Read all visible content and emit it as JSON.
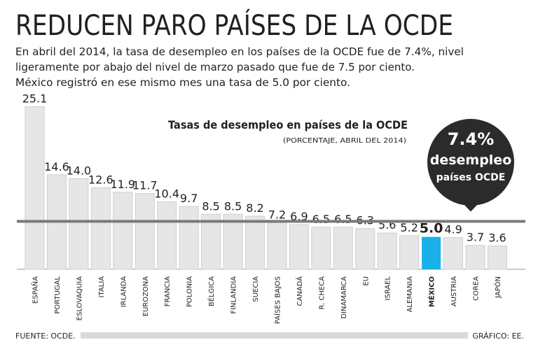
{
  "chart_data": {
    "type": "bar",
    "title": "REDUCEN PARO PAÍSES DE LA OCDE",
    "description": [
      "En abril del 2014, la tasa de desempleo en los países de la OCDE fue de 7.4%, nivel",
      "ligeramente por abajo del nivel de marzo pasado que fue de 7.5 por ciento.",
      "México registró en ese mismo mes una tasa de 5.0 por ciento."
    ],
    "subtitle": "Tasas de desempleo en países de la OCDE",
    "note": "(PORCENTAJE, ABRIL DEL 2014)",
    "categories": [
      "ESPAÑA",
      "PORTUGAL",
      "ESLOVAQUIA",
      "ITALIA",
      "IRLANDA",
      "EUROZONA",
      "FRANCIA",
      "POLONIA",
      "BÉLGICA",
      "FINLANDIA",
      "SUECIA",
      "PAÍSES BAJOS",
      "CANADÁ",
      "R. CHECA",
      "DINAMARCA",
      "EU",
      "ISRAEL",
      "ALEMANIA",
      "MÉXICO",
      "AUSTRIA",
      "COREA",
      "JAPÓN"
    ],
    "values": [
      25.1,
      14.6,
      14.0,
      12.6,
      11.9,
      11.7,
      10.4,
      9.7,
      8.5,
      8.5,
      8.2,
      7.2,
      6.9,
      6.5,
      6.5,
      6.3,
      5.6,
      5.2,
      5.0,
      4.9,
      3.7,
      3.6
    ],
    "value_labels": [
      "25.1",
      "14.6",
      "14.0",
      "12.6",
      "11.9",
      "11.7",
      "10.4",
      "9.7",
      "8.5",
      "8.5",
      "8.2",
      "7.2",
      "6.9",
      "6.5",
      "6.5",
      "6.3",
      "5.6",
      "5.2",
      "5.0",
      "4.9",
      "3.7",
      "3.6"
    ],
    "colors": [
      "#e6e6e6",
      "#e6e6e6",
      "#e6e6e6",
      "#e6e6e6",
      "#e6e6e6",
      "#e6e6e6",
      "#e6e6e6",
      "#e6e6e6",
      "#e6e6e6",
      "#e6e6e6",
      "#e6e6e6",
      "#e6e6e6",
      "#e6e6e6",
      "#e6e6e6",
      "#e6e6e6",
      "#e6e6e6",
      "#e6e6e6",
      "#e6e6e6",
      "#1ab0e8",
      "#e6e6e6",
      "#e6e6e6",
      "#e6e6e6"
    ],
    "ylim": [
      0,
      27
    ],
    "reference_line": {
      "value": 7.4,
      "label": "7.4%",
      "text": [
        "desempleo",
        "países OCDE"
      ],
      "color": "#7a7a7a"
    },
    "source": "FUENTE: OCDE.",
    "credit": "GRÁFICO: EE."
  }
}
